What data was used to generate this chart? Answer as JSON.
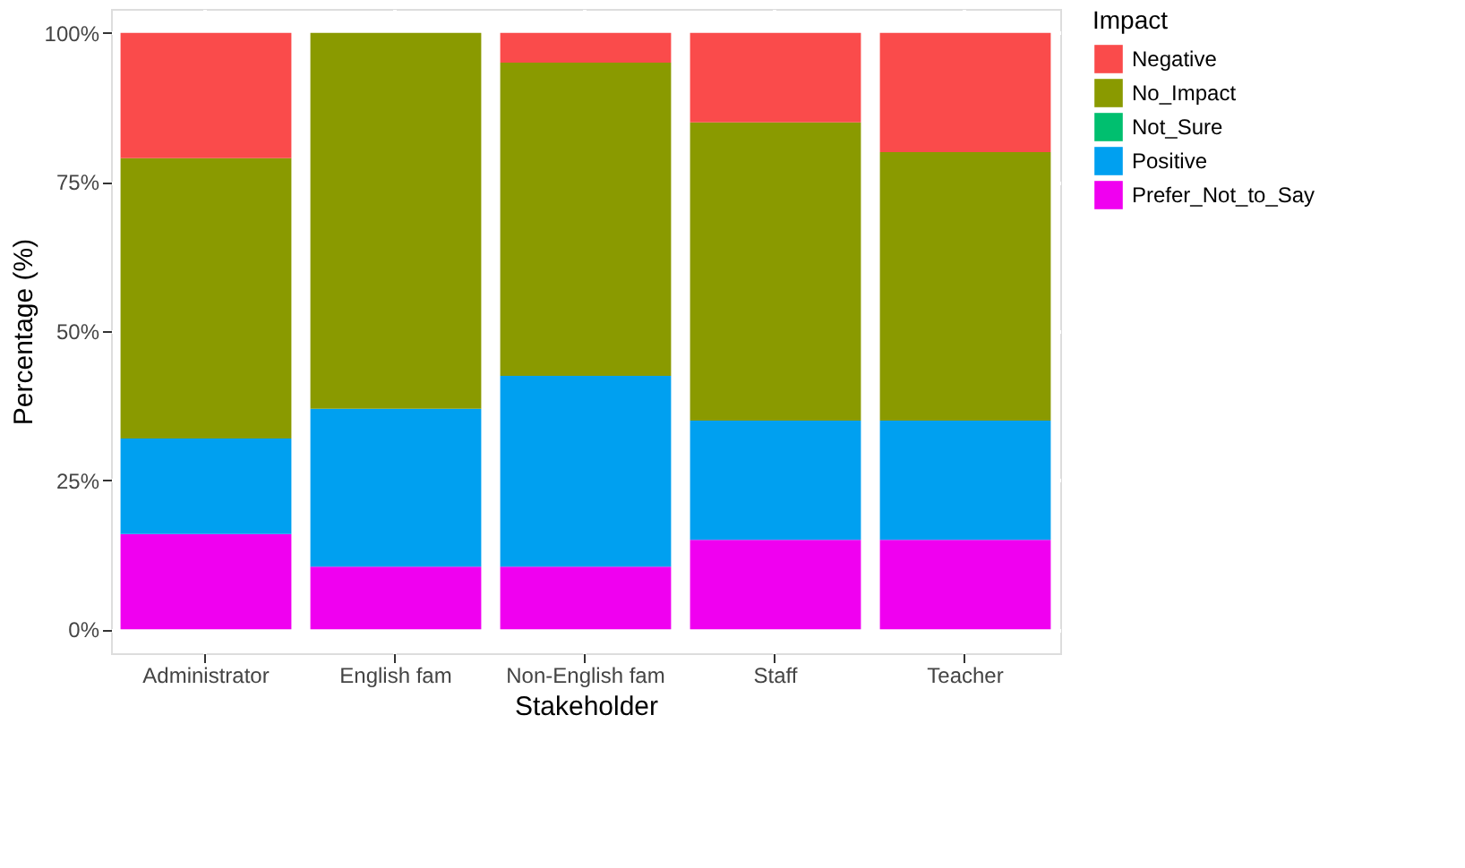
{
  "chart_data": {
    "type": "bar",
    "stacked": true,
    "xlabel": "Stakeholder",
    "ylabel": "Percentage (%)",
    "legend_title": "Impact",
    "legend": "right",
    "grid": true,
    "categories": [
      "Administrator",
      "English fam",
      "Non-English fam",
      "Staff",
      "Teacher"
    ],
    "ylim": [
      -4,
      104
    ],
    "yticks": [
      {
        "value": 0,
        "label": "0%"
      },
      {
        "value": 25,
        "label": "25%"
      },
      {
        "value": 50,
        "label": "50%"
      },
      {
        "value": 75,
        "label": "75%"
      },
      {
        "value": 100,
        "label": "100%"
      }
    ],
    "series": [
      {
        "name": "Prefer_Not_to_Say",
        "color": "#f000f0",
        "values": [
          16,
          10.5,
          10.5,
          15,
          15
        ]
      },
      {
        "name": "Positive",
        "color": "#00a0f0",
        "values": [
          16,
          26.5,
          32,
          20,
          20
        ]
      },
      {
        "name": "Not_Sure",
        "color": "#00bf6f",
        "values": [
          0,
          0,
          0,
          0,
          0
        ]
      },
      {
        "name": "No_Impact",
        "color": "#8a9a00",
        "values": [
          47,
          63,
          52.5,
          50,
          45
        ]
      },
      {
        "name": "Negative",
        "color": "#fa4b4b",
        "values": [
          21,
          0,
          5,
          15,
          20
        ]
      }
    ]
  }
}
